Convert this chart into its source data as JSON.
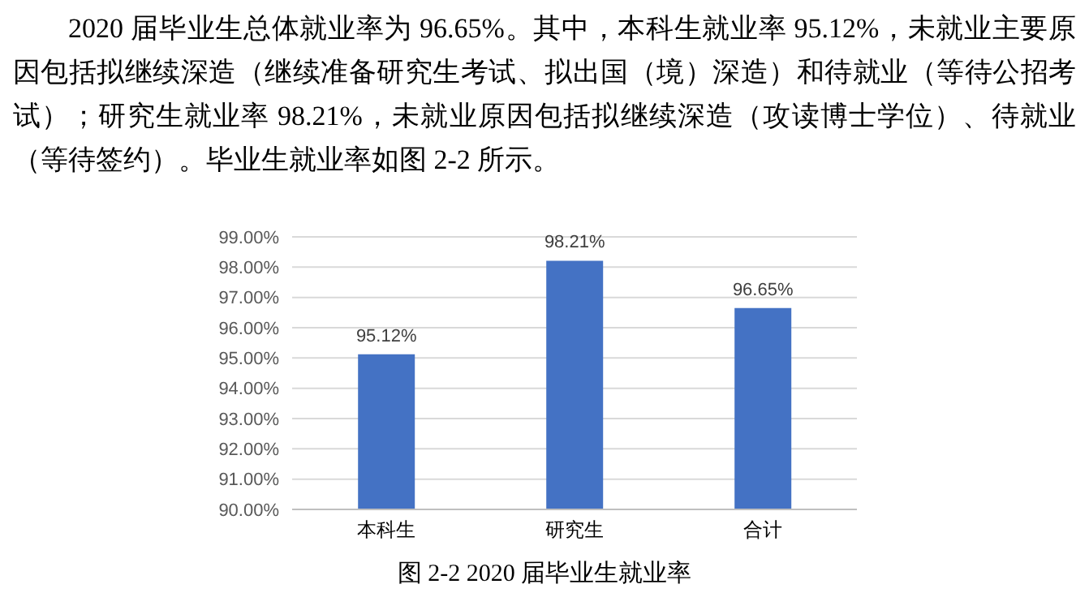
{
  "chart_data": {
    "type": "bar",
    "title": "图 2-2 2020 届毕业生就业率",
    "annotations": [
      "2020 届毕业生总体就业率为 96.65%。其中，本科生就业率 95.12%，未就业主要原因包括拟继续深造（继续准备研究生考试、拟出国（境）深造）和待就业（等待公招考试）；研究生就业率 98.21%，未就业原因包括拟继续深造（攻读博士学位）、待就业（等待签约）。毕业生就业率如图 2-2 所示。"
    ],
    "categories": [
      "本科生",
      "研究生",
      "合计"
    ],
    "values": [
      95.12,
      98.21,
      96.65
    ],
    "value_labels": [
      "95.12%",
      "98.21%",
      "96.65%"
    ],
    "color": "#4472c4",
    "ylim": [
      90,
      99
    ],
    "yticks": [
      {
        "value": 90,
        "label": "90.00%"
      },
      {
        "value": 91,
        "label": "91.00%"
      },
      {
        "value": 92,
        "label": "92.00%"
      },
      {
        "value": 93,
        "label": "93.00%"
      },
      {
        "value": 94,
        "label": "94.00%"
      },
      {
        "value": 95,
        "label": "95.00%"
      },
      {
        "value": 96,
        "label": "96.00%"
      },
      {
        "value": 97,
        "label": "97.00%"
      },
      {
        "value": 98,
        "label": "98.00%"
      },
      {
        "value": 99,
        "label": "99.00%"
      }
    ],
    "grid": "y"
  }
}
